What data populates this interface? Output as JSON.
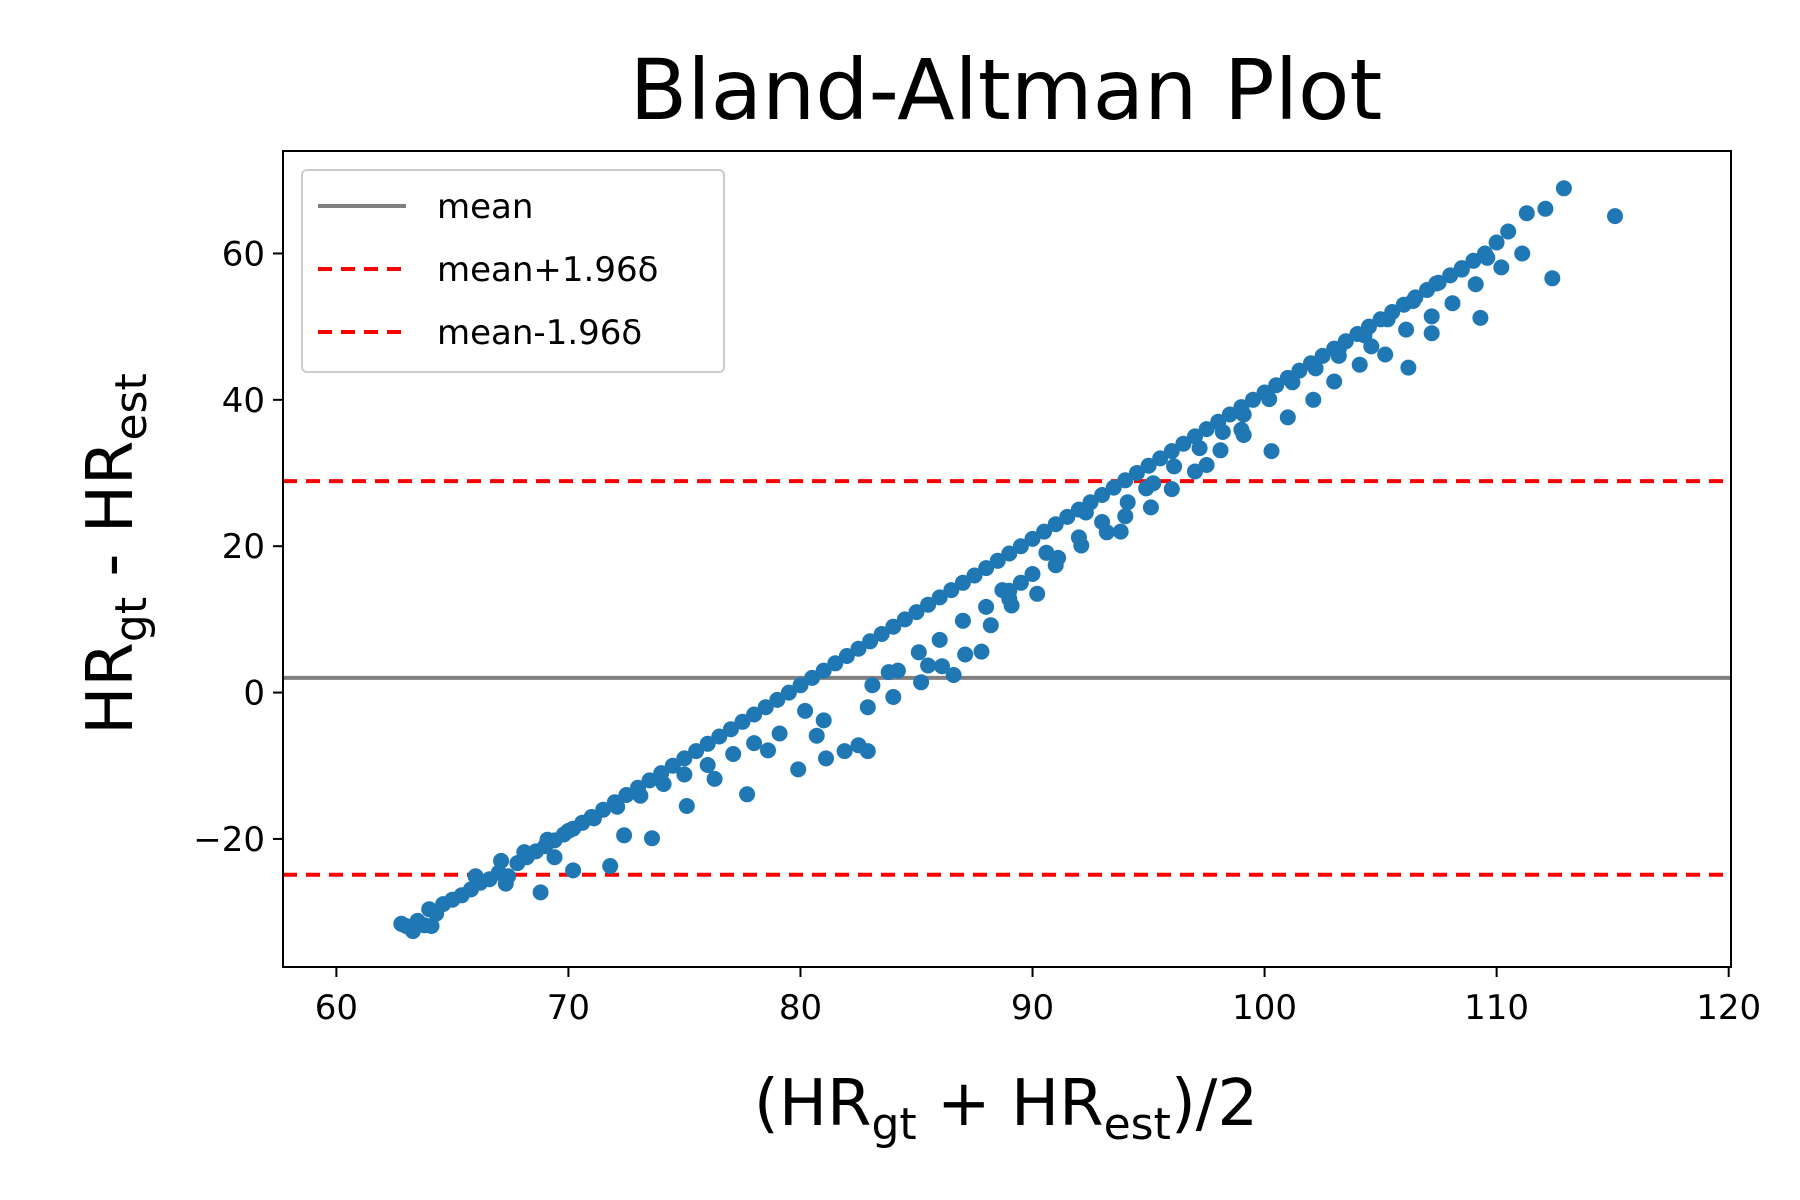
{
  "chart_data": {
    "type": "scatter",
    "title": "Bland-Altman Plot",
    "xlabel": {
      "pre": "(HR",
      "sub1": "gt",
      "mid": " + HR",
      "sub2": "est",
      "post": ")/2"
    },
    "ylabel": {
      "pre": "HR",
      "sub1": "gt",
      "mid": " - HR",
      "sub2": "est"
    },
    "xlim": [
      57.7,
      120.1
    ],
    "ylim": [
      -37.5,
      74.0
    ],
    "xticks": [
      60,
      70,
      80,
      90,
      100,
      110,
      120
    ],
    "yticks": [
      -20,
      0,
      20,
      40,
      60
    ],
    "tick_labels_x": [
      "60",
      "70",
      "80",
      "90",
      "100",
      "110",
      "120"
    ],
    "tick_labels_y": [
      "−20",
      "0",
      "20",
      "40",
      "60"
    ],
    "grid": false,
    "legend_position": "top-left",
    "lines": [
      {
        "name": "mean",
        "y": 2.0,
        "style": "solid",
        "color": "#808080"
      },
      {
        "name": "mean+1.96δ",
        "y": 28.9,
        "style": "dashed",
        "color": "#ff0000"
      },
      {
        "name": "mean-1.96δ",
        "y": -24.9,
        "style": "dashed",
        "color": "#ff0000"
      }
    ],
    "scatter_color": "#1f77b4",
    "points": [
      [
        62.8,
        -31.6
      ],
      [
        63.0,
        -31.9
      ],
      [
        63.3,
        -32.6
      ],
      [
        63.5,
        -31.2
      ],
      [
        63.8,
        -31.8
      ],
      [
        64.0,
        -29.6
      ],
      [
        64.3,
        -30.2
      ],
      [
        64.6,
        -28.9
      ],
      [
        65.0,
        -28.3
      ],
      [
        65.4,
        -27.7
      ],
      [
        65.8,
        -26.9
      ],
      [
        66.2,
        -26.0
      ],
      [
        66.6,
        -25.5
      ],
      [
        67.0,
        -24.6
      ],
      [
        67.4,
        -25.1
      ],
      [
        67.8,
        -23.3
      ],
      [
        68.2,
        -22.5
      ],
      [
        68.6,
        -21.7
      ],
      [
        69.0,
        -21.0
      ],
      [
        69.4,
        -20.2
      ],
      [
        69.8,
        -19.4
      ],
      [
        70.2,
        -18.6
      ],
      [
        70.6,
        -17.8
      ],
      [
        71.0,
        -17.0
      ],
      [
        71.5,
        -16.0
      ],
      [
        72.0,
        -15.0
      ],
      [
        72.5,
        -14.0
      ],
      [
        73.0,
        -13.0
      ],
      [
        73.5,
        -12.0
      ],
      [
        74.0,
        -11.0
      ],
      [
        74.5,
        -10.0
      ],
      [
        75.0,
        -9.0
      ],
      [
        75.5,
        -8.0
      ],
      [
        76.0,
        -7.0
      ],
      [
        76.5,
        -6.0
      ],
      [
        77.0,
        -5.0
      ],
      [
        77.5,
        -4.0
      ],
      [
        78.0,
        -3.0
      ],
      [
        78.5,
        -2.0
      ],
      [
        79.0,
        -1.0
      ],
      [
        79.5,
        0.0
      ],
      [
        80.0,
        1.0
      ],
      [
        80.5,
        2.0
      ],
      [
        81.0,
        3.0
      ],
      [
        81.5,
        4.0
      ],
      [
        82.0,
        5.0
      ],
      [
        82.5,
        6.0
      ],
      [
        83.0,
        7.0
      ],
      [
        83.5,
        8.0
      ],
      [
        84.0,
        9.0
      ],
      [
        84.5,
        10.0
      ],
      [
        85.0,
        11.0
      ],
      [
        85.5,
        12.0
      ],
      [
        86.0,
        13.0
      ],
      [
        86.5,
        14.0
      ],
      [
        87.0,
        15.0
      ],
      [
        87.5,
        16.0
      ],
      [
        88.0,
        17.0
      ],
      [
        88.5,
        18.0
      ],
      [
        89.0,
        19.0
      ],
      [
        89.5,
        20.0
      ],
      [
        90.0,
        21.0
      ],
      [
        90.5,
        22.0
      ],
      [
        91.0,
        23.0
      ],
      [
        91.5,
        24.0
      ],
      [
        92.0,
        25.0
      ],
      [
        92.5,
        26.0
      ],
      [
        93.0,
        27.0
      ],
      [
        93.5,
        28.0
      ],
      [
        94.0,
        29.0
      ],
      [
        94.5,
        30.0
      ],
      [
        95.0,
        31.0
      ],
      [
        95.5,
        32.0
      ],
      [
        96.0,
        33.0
      ],
      [
        96.5,
        34.0
      ],
      [
        97.0,
        35.0
      ],
      [
        97.5,
        36.0
      ],
      [
        98.0,
        37.0
      ],
      [
        98.5,
        38.0
      ],
      [
        99.0,
        39.0
      ],
      [
        99.5,
        40.0
      ],
      [
        100.0,
        41.0
      ],
      [
        100.5,
        42.0
      ],
      [
        101.0,
        43.0
      ],
      [
        101.5,
        44.0
      ],
      [
        102.0,
        45.0
      ],
      [
        102.5,
        46.0
      ],
      [
        103.0,
        47.0
      ],
      [
        103.5,
        48.0
      ],
      [
        104.0,
        49.0
      ],
      [
        104.5,
        50.0
      ],
      [
        105.0,
        51.0
      ],
      [
        105.5,
        52.0
      ],
      [
        106.0,
        53.0
      ],
      [
        106.5,
        54.0
      ],
      [
        107.0,
        55.0
      ],
      [
        107.5,
        56.0
      ],
      [
        108.0,
        57.0
      ],
      [
        108.5,
        58.0
      ],
      [
        109.0,
        59.0
      ],
      [
        109.5,
        60.0
      ],
      [
        110.0,
        61.5
      ],
      [
        110.5,
        63.0
      ],
      [
        111.3,
        65.5
      ],
      [
        112.1,
        66.1
      ],
      [
        112.9,
        68.9
      ],
      [
        115.1,
        65.1
      ],
      [
        112.4,
        56.6
      ],
      [
        109.3,
        51.2
      ],
      [
        107.2,
        49.1
      ],
      [
        106.2,
        44.4
      ],
      [
        104.6,
        47.3
      ],
      [
        103.2,
        46.0
      ],
      [
        100.3,
        33.0
      ],
      [
        99.1,
        35.2
      ],
      [
        97.5,
        31.1
      ],
      [
        94.9,
        27.9
      ],
      [
        93.8,
        22.0
      ],
      [
        92.3,
        24.6
      ],
      [
        90.6,
        19.1
      ],
      [
        89.5,
        15.0
      ],
      [
        89.0,
        12.8
      ],
      [
        88.7,
        14.0
      ],
      [
        87.8,
        5.6
      ],
      [
        86.6,
        2.4
      ],
      [
        85.5,
        3.7
      ],
      [
        83.8,
        2.8
      ],
      [
        82.9,
        -2.0
      ],
      [
        82.9,
        -8.0
      ],
      [
        82.5,
        -7.2
      ],
      [
        81.9,
        -8.0
      ],
      [
        81.1,
        -9.0
      ],
      [
        80.7,
        -5.9
      ],
      [
        79.9,
        -10.5
      ],
      [
        78.6,
        -7.9
      ],
      [
        77.7,
        -13.9
      ],
      [
        76.3,
        -11.8
      ],
      [
        75.1,
        -15.5
      ],
      [
        73.6,
        -19.9
      ],
      [
        72.4,
        -19.5
      ],
      [
        71.8,
        -23.7
      ],
      [
        70.2,
        -24.3
      ],
      [
        69.4,
        -22.5
      ],
      [
        68.8,
        -27.3
      ],
      [
        67.3,
        -26.1
      ],
      [
        66.0,
        -25.1
      ],
      [
        64.1,
        -31.9
      ],
      [
        84.0,
        -0.6
      ],
      [
        85.2,
        1.4
      ],
      [
        86.1,
        3.6
      ],
      [
        87.1,
        5.2
      ],
      [
        88.2,
        9.2
      ],
      [
        89.1,
        11.9
      ],
      [
        90.2,
        13.5
      ],
      [
        91.0,
        17.4
      ],
      [
        92.1,
        20.1
      ],
      [
        93.2,
        21.9
      ],
      [
        94.0,
        24.1
      ],
      [
        95.1,
        25.3
      ],
      [
        96.0,
        27.8
      ],
      [
        97.0,
        30.2
      ],
      [
        98.1,
        33.1
      ],
      [
        99.0,
        35.9
      ],
      [
        101.0,
        37.6
      ],
      [
        102.1,
        40.0
      ],
      [
        103.0,
        42.5
      ],
      [
        104.1,
        44.8
      ],
      [
        105.2,
        46.2
      ],
      [
        106.1,
        49.6
      ],
      [
        107.2,
        51.4
      ],
      [
        108.1,
        53.2
      ],
      [
        109.1,
        55.8
      ],
      [
        110.2,
        58.1
      ],
      [
        111.1,
        60.0
      ],
      [
        80.2,
        -2.5
      ],
      [
        81.0,
        -3.8
      ],
      [
        79.1,
        -5.6
      ],
      [
        78.0,
        -6.9
      ],
      [
        77.1,
        -8.4
      ],
      [
        76.0,
        -9.9
      ],
      [
        75.0,
        -11.2
      ],
      [
        74.1,
        -12.5
      ],
      [
        73.1,
        -14.1
      ],
      [
        72.1,
        -15.6
      ],
      [
        71.1,
        -17.2
      ],
      [
        70.0,
        -18.9
      ],
      [
        69.1,
        -20.1
      ],
      [
        68.1,
        -21.8
      ],
      [
        67.1,
        -23.0
      ],
      [
        83.1,
        1.0
      ],
      [
        84.2,
        3.0
      ],
      [
        85.1,
        5.5
      ],
      [
        86.0,
        7.2
      ],
      [
        87.0,
        9.8
      ],
      [
        88.0,
        11.7
      ],
      [
        89.0,
        13.9
      ],
      [
        90.0,
        16.2
      ],
      [
        91.1,
        18.4
      ],
      [
        92.0,
        21.2
      ],
      [
        93.0,
        23.3
      ],
      [
        94.1,
        26.0
      ],
      [
        95.2,
        28.6
      ],
      [
        96.1,
        30.9
      ],
      [
        97.2,
        33.4
      ],
      [
        98.2,
        35.6
      ],
      [
        99.1,
        38.0
      ],
      [
        100.2,
        40.1
      ],
      [
        101.2,
        42.4
      ],
      [
        102.2,
        44.3
      ],
      [
        103.2,
        46.9
      ],
      [
        104.3,
        48.8
      ],
      [
        105.3,
        51.0
      ],
      [
        106.4,
        53.5
      ],
      [
        107.4,
        55.9
      ],
      [
        108.5,
        57.8
      ],
      [
        109.6,
        59.4
      ]
    ]
  }
}
